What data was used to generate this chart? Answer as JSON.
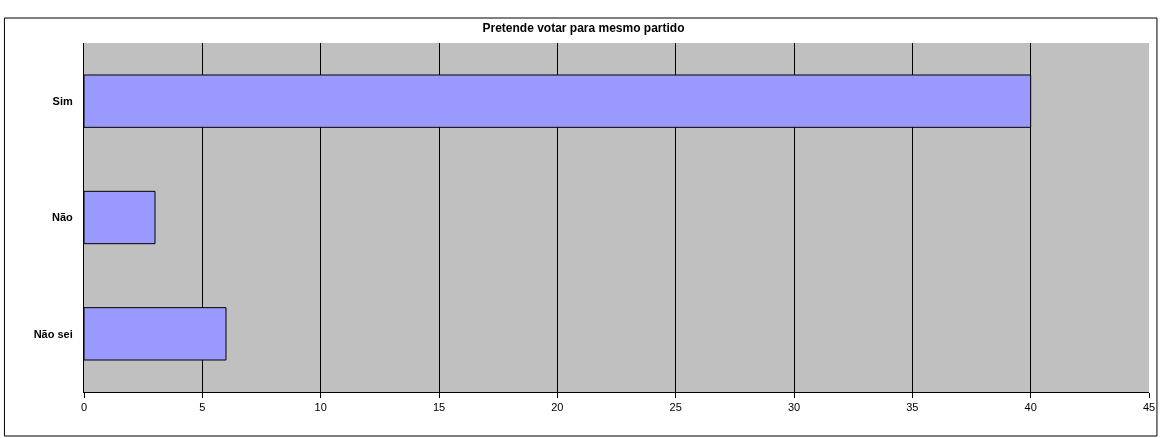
{
  "chart_data": {
    "type": "bar",
    "orientation": "horizontal",
    "title": "Pretende votar para mesmo partido",
    "categories": [
      "Sim",
      "Não",
      "Não sei"
    ],
    "values": [
      40,
      3,
      6
    ],
    "color": "#9999ff",
    "xlim": [
      0,
      45
    ],
    "xticks": [
      0,
      5,
      10,
      15,
      20,
      25,
      30,
      35,
      40,
      45
    ],
    "grid": "x"
  }
}
